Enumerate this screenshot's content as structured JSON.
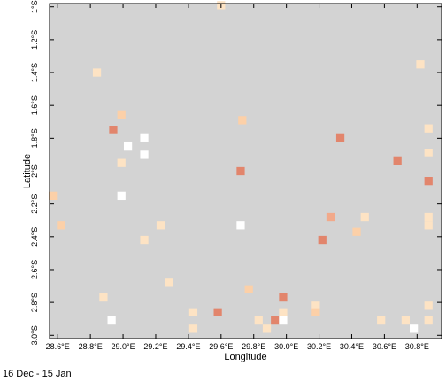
{
  "chart_data": {
    "type": "heatmap",
    "title": "",
    "xlabel": "Longitude",
    "ylabel": "Latitude",
    "xlim": [
      28.55,
      30.95
    ],
    "ylim": [
      -3.02,
      -0.98
    ],
    "x_ticks": [
      {
        "v": 28.6,
        "label": "28.6°E"
      },
      {
        "v": 28.8,
        "label": "28.8°E"
      },
      {
        "v": 29.0,
        "label": "29.0°E"
      },
      {
        "v": 29.2,
        "label": "29.2°E"
      },
      {
        "v": 29.4,
        "label": "29.4°E"
      },
      {
        "v": 29.6,
        "label": "29.6°E"
      },
      {
        "v": 29.8,
        "label": "29.8°E"
      },
      {
        "v": 30.0,
        "label": "30.0°E"
      },
      {
        "v": 30.2,
        "label": "30.2°E"
      },
      {
        "v": 30.4,
        "label": "30.4°E"
      },
      {
        "v": 30.6,
        "label": "30.6°E"
      },
      {
        "v": 30.8,
        "label": "30.8°E"
      }
    ],
    "y_ticks": [
      {
        "v": -1.0,
        "label": "1°S"
      },
      {
        "v": -1.2,
        "label": "1.2°S"
      },
      {
        "v": -1.4,
        "label": "1.4°S"
      },
      {
        "v": -1.6,
        "label": "1.6°S"
      },
      {
        "v": -1.8,
        "label": "1.8°S"
      },
      {
        "v": -2.0,
        "label": "2°S"
      },
      {
        "v": -2.2,
        "label": "2.2°S"
      },
      {
        "v": -2.4,
        "label": "2.4°S"
      },
      {
        "v": -2.6,
        "label": "2.6°S"
      },
      {
        "v": -2.8,
        "label": "2.8°S"
      },
      {
        "v": -3.0,
        "label": "3.0°S"
      }
    ],
    "background_color": "#d3d3d3",
    "color_classes": {
      "white": "#ffffff",
      "pale": "#fde3c4",
      "light": "#fcd0a8",
      "medium": "#f2a98a",
      "dark": "#e2856c"
    },
    "cell_size_deg": 0.05,
    "cells": [
      {
        "lon": 29.6,
        "lat": -0.99,
        "c": "pale"
      },
      {
        "lon": 28.84,
        "lat": -1.4,
        "c": "pale"
      },
      {
        "lon": 30.82,
        "lat": -1.35,
        "c": "pale"
      },
      {
        "lon": 28.99,
        "lat": -1.66,
        "c": "light"
      },
      {
        "lon": 29.73,
        "lat": -1.69,
        "c": "light"
      },
      {
        "lon": 28.94,
        "lat": -1.75,
        "c": "dark"
      },
      {
        "lon": 30.33,
        "lat": -1.8,
        "c": "dark"
      },
      {
        "lon": 29.13,
        "lat": -1.8,
        "c": "white"
      },
      {
        "lon": 29.03,
        "lat": -1.85,
        "c": "white"
      },
      {
        "lon": 29.13,
        "lat": -1.9,
        "c": "white"
      },
      {
        "lon": 30.87,
        "lat": -1.74,
        "c": "pale"
      },
      {
        "lon": 28.99,
        "lat": -1.95,
        "c": "pale"
      },
      {
        "lon": 30.68,
        "lat": -1.94,
        "c": "dark"
      },
      {
        "lon": 29.72,
        "lat": -2.0,
        "c": "dark"
      },
      {
        "lon": 30.87,
        "lat": -1.89,
        "c": "pale"
      },
      {
        "lon": 30.87,
        "lat": -2.06,
        "c": "dark"
      },
      {
        "lon": 28.57,
        "lat": -2.15,
        "c": "light"
      },
      {
        "lon": 28.99,
        "lat": -2.15,
        "c": "white"
      },
      {
        "lon": 30.27,
        "lat": -2.28,
        "c": "medium"
      },
      {
        "lon": 30.48,
        "lat": -2.28,
        "c": "pale"
      },
      {
        "lon": 30.87,
        "lat": -2.28,
        "c": "pale"
      },
      {
        "lon": 28.62,
        "lat": -2.33,
        "c": "light"
      },
      {
        "lon": 29.23,
        "lat": -2.33,
        "c": "pale"
      },
      {
        "lon": 29.72,
        "lat": -2.33,
        "c": "white"
      },
      {
        "lon": 30.87,
        "lat": -2.33,
        "c": "pale"
      },
      {
        "lon": 30.43,
        "lat": -2.37,
        "c": "light"
      },
      {
        "lon": 29.13,
        "lat": -2.42,
        "c": "pale"
      },
      {
        "lon": 30.22,
        "lat": -2.42,
        "c": "dark"
      },
      {
        "lon": 29.28,
        "lat": -2.68,
        "c": "pale"
      },
      {
        "lon": 29.77,
        "lat": -2.72,
        "c": "light"
      },
      {
        "lon": 28.88,
        "lat": -2.77,
        "c": "pale"
      },
      {
        "lon": 29.98,
        "lat": -2.77,
        "c": "dark"
      },
      {
        "lon": 30.18,
        "lat": -2.82,
        "c": "pale"
      },
      {
        "lon": 30.87,
        "lat": -2.82,
        "c": "pale"
      },
      {
        "lon": 30.18,
        "lat": -2.86,
        "c": "light"
      },
      {
        "lon": 29.43,
        "lat": -2.86,
        "c": "pale"
      },
      {
        "lon": 29.58,
        "lat": -2.86,
        "c": "dark"
      },
      {
        "lon": 29.98,
        "lat": -2.86,
        "c": "pale"
      },
      {
        "lon": 28.93,
        "lat": -2.91,
        "c": "white"
      },
      {
        "lon": 29.83,
        "lat": -2.91,
        "c": "pale"
      },
      {
        "lon": 29.93,
        "lat": -2.91,
        "c": "dark"
      },
      {
        "lon": 29.98,
        "lat": -2.91,
        "c": "white"
      },
      {
        "lon": 30.58,
        "lat": -2.91,
        "c": "pale"
      },
      {
        "lon": 30.73,
        "lat": -2.91,
        "c": "pale"
      },
      {
        "lon": 30.87,
        "lat": -2.91,
        "c": "pale"
      },
      {
        "lon": 29.43,
        "lat": -2.96,
        "c": "pale"
      },
      {
        "lon": 29.88,
        "lat": -2.96,
        "c": "pale"
      },
      {
        "lon": 30.78,
        "lat": -2.96,
        "c": "white"
      }
    ],
    "grid": false,
    "legend": "none"
  },
  "footer": {
    "period": "16 Dec  - 15 Jan"
  }
}
